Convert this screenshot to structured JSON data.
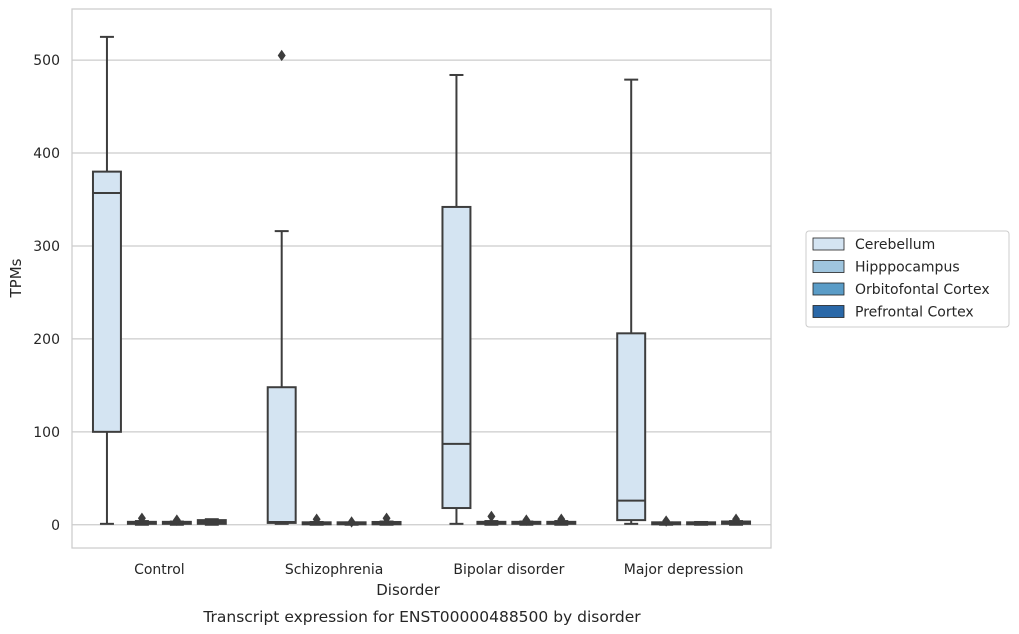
{
  "chart_data": {
    "type": "box",
    "caption": "Transcript expression for ENST00000488500 by disorder",
    "xlabel": "Disorder",
    "ylabel": "TPMs",
    "ylim": [
      -25,
      555
    ],
    "yticks": [
      0,
      100,
      200,
      300,
      400,
      500
    ],
    "grid": "horizontal",
    "legend_position": "right",
    "categories": [
      "Control",
      "Schizophrenia",
      "Bipolar disorder",
      "Major depression"
    ],
    "series": [
      {
        "name": "Cerebellum",
        "color": "#d4e4f2",
        "boxes": [
          {
            "whisker_low": 1,
            "q1": 100,
            "median": 357,
            "q3": 380,
            "whisker_high": 525,
            "outliers": []
          },
          {
            "whisker_low": 1,
            "q1": 2,
            "median": 3,
            "q3": 148,
            "whisker_high": 316,
            "outliers": [
              505
            ]
          },
          {
            "whisker_low": 1,
            "q1": 18,
            "median": 87,
            "q3": 342,
            "whisker_high": 484,
            "outliers": []
          },
          {
            "whisker_low": 1,
            "q1": 5,
            "median": 26,
            "q3": 206,
            "whisker_high": 479,
            "outliers": []
          }
        ]
      },
      {
        "name": "Hipppocampus",
        "color": "#9fc5de",
        "boxes": [
          {
            "whisker_low": 0,
            "q1": 1,
            "median": 2,
            "q3": 3,
            "whisker_high": 4,
            "outliers": [
              7
            ]
          },
          {
            "whisker_low": 0,
            "q1": 0.5,
            "median": 1,
            "q3": 2,
            "whisker_high": 3,
            "outliers": [
              6
            ]
          },
          {
            "whisker_low": 0,
            "q1": 1,
            "median": 2,
            "q3": 3,
            "whisker_high": 4,
            "outliers": [
              9
            ]
          },
          {
            "whisker_low": 0,
            "q1": 0.5,
            "median": 1,
            "q3": 2,
            "whisker_high": 2.5,
            "outliers": [
              4
            ]
          }
        ]
      },
      {
        "name": "Orbitofontal Cortex",
        "color": "#5a9cc7",
        "boxes": [
          {
            "whisker_low": 0,
            "q1": 1,
            "median": 2,
            "q3": 3,
            "whisker_high": 3.5,
            "outliers": [
              5
            ]
          },
          {
            "whisker_low": 0,
            "q1": 0.5,
            "median": 1,
            "q3": 2,
            "whisker_high": 2.5,
            "outliers": [
              3
            ]
          },
          {
            "whisker_low": 0,
            "q1": 1,
            "median": 2,
            "q3": 3,
            "whisker_high": 3.5,
            "outliers": [
              5
            ]
          },
          {
            "whisker_low": 0,
            "q1": 0.5,
            "median": 1.5,
            "q3": 2.5,
            "whisker_high": 3,
            "outliers": []
          }
        ]
      },
      {
        "name": "Prefrontal Cortex",
        "color": "#2a68a8",
        "boxes": [
          {
            "whisker_low": 0,
            "q1": 1,
            "median": 3,
            "q3": 5,
            "whisker_high": 6,
            "outliers": []
          },
          {
            "whisker_low": 0,
            "q1": 0.5,
            "median": 1.5,
            "q3": 3,
            "whisker_high": 3.5,
            "outliers": [
              7
            ]
          },
          {
            "whisker_low": 0,
            "q1": 1,
            "median": 2,
            "q3": 3,
            "whisker_high": 4,
            "outliers": [
              6
            ]
          },
          {
            "whisker_low": 0,
            "q1": 1,
            "median": 2,
            "q3": 3.5,
            "whisker_high": 4,
            "outliers": [
              6
            ]
          }
        ]
      }
    ]
  }
}
